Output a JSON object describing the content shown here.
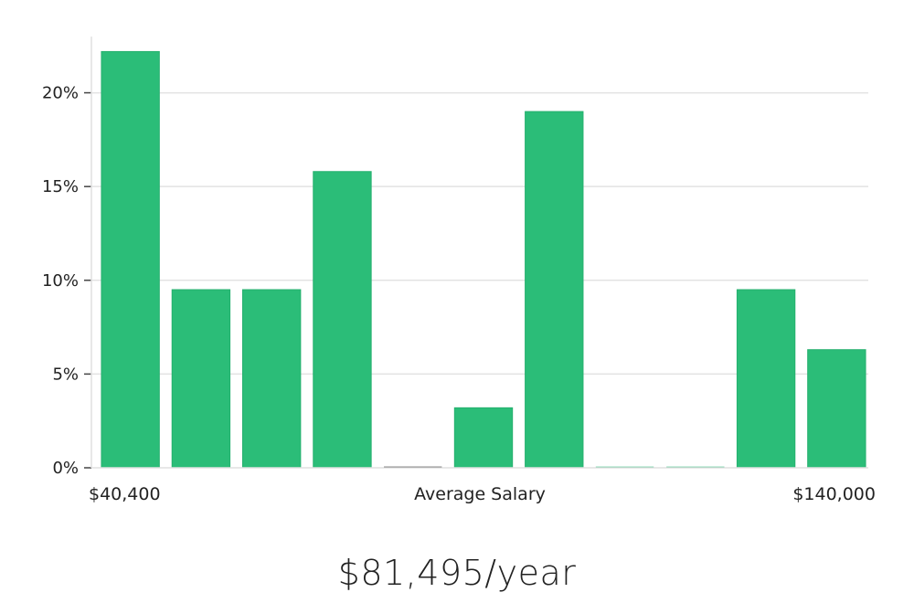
{
  "summary_salary": "$81,495/year",
  "colors": {
    "bar": "#2bbd78",
    "bar_stroke": "#25b06e",
    "zero_bar": "#1a1a1a"
  },
  "chart_data": {
    "type": "bar",
    "title": "",
    "xlabel": "Average Salary",
    "ylabel": "",
    "ylim": [
      0,
      23
    ],
    "yticks": [
      0,
      5,
      10,
      15,
      20
    ],
    "ytick_labels": [
      "0%",
      "5%",
      "10%",
      "15%",
      "20%"
    ],
    "x_min_label": "$40,400",
    "x_max_label": "$140,000",
    "grid": "horizontal",
    "values": [
      22.2,
      9.5,
      9.5,
      15.8,
      0,
      3.2,
      19.0,
      0,
      0,
      9.5,
      6.3
    ]
  }
}
